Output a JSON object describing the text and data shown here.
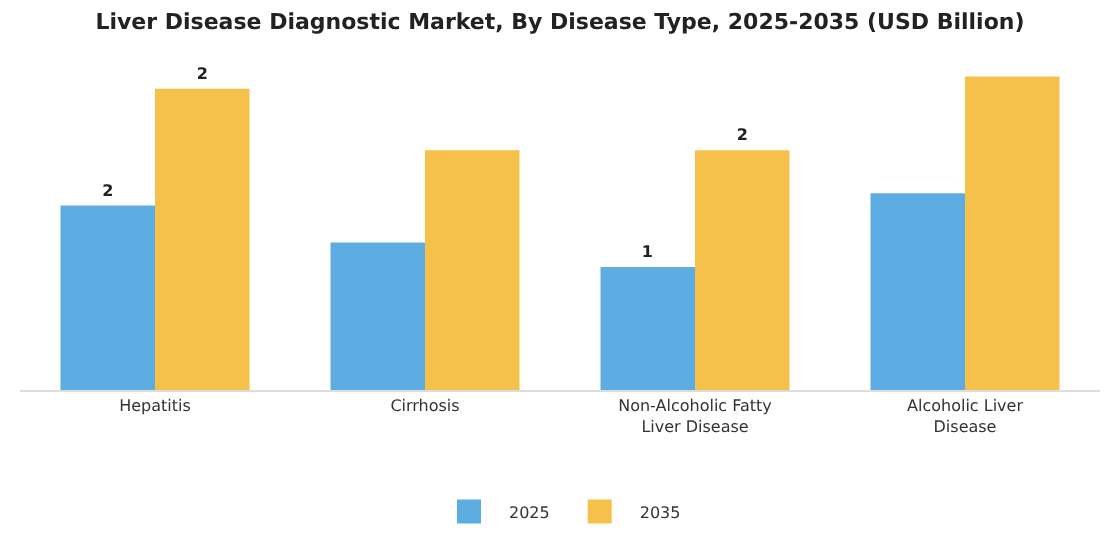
{
  "chart_data": {
    "type": "bar",
    "title": "Liver Disease Diagnostic Market, By Disease Type, 2025-2035 (USD Billion)",
    "categories": [
      "Hepatitis",
      "Cirrhosis",
      "Non-Alcoholic Fatty\nLiver Disease",
      "Alcoholic Liver\nDisease"
    ],
    "tick_labels": "x",
    "series": [
      {
        "name": "2025",
        "color": "#5dade2",
        "values": [
          1.5,
          1.2,
          1.0,
          1.6
        ],
        "value_labels": [
          "2",
          null,
          "1",
          null
        ]
      },
      {
        "name": "2035",
        "color": "#f5c14b",
        "values": [
          2.45,
          1.95,
          1.95,
          2.55
        ],
        "value_labels": [
          "2",
          null,
          "2",
          null
        ]
      }
    ],
    "legend": "bottom",
    "grid": false
  }
}
